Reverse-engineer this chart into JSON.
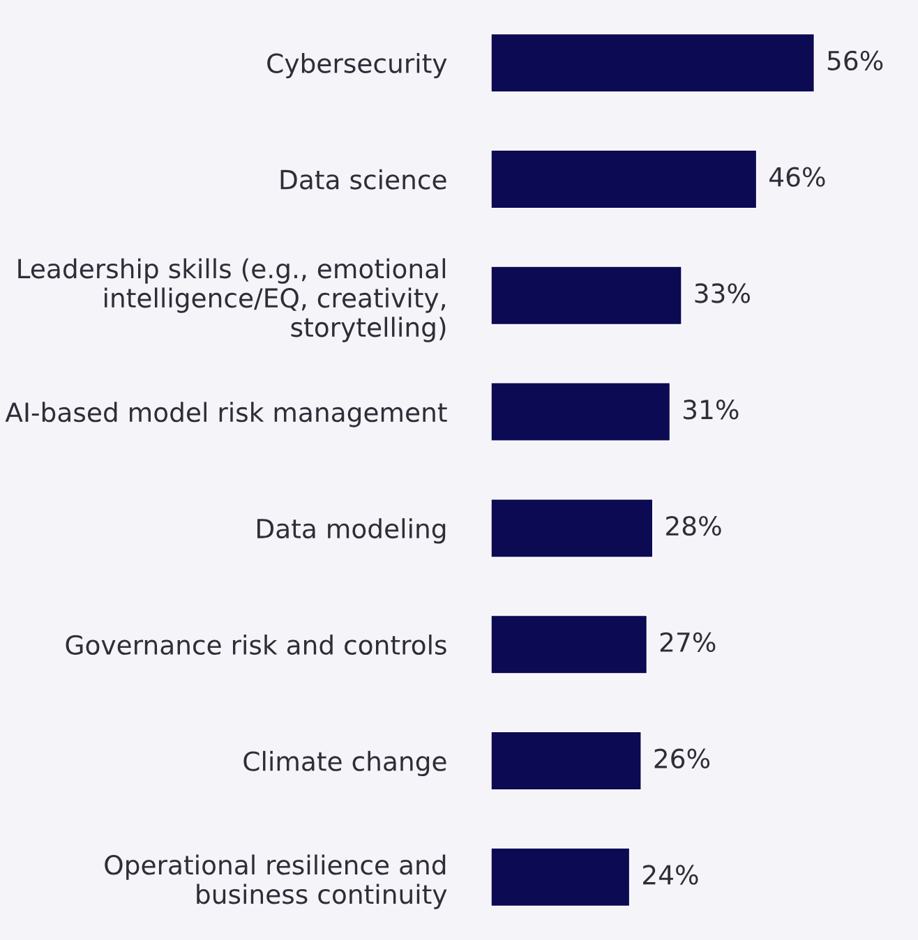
{
  "chart_data": {
    "type": "bar",
    "orientation": "horizontal",
    "categories": [
      "Cybersecurity",
      "Data science",
      "Leadership skills (e.g., emotional\nintelligence/EQ, creativity,\nstorytelling)",
      "AI-based model risk management",
      "Data modeling",
      "Governance risk and controls",
      "Climate change",
      "Operational resilience and\nbusiness continuity"
    ],
    "series": [
      {
        "color": "#0c0a52",
        "values": [
          56,
          46,
          33,
          31,
          28,
          27,
          26,
          24
        ],
        "value_labels": [
          "56%",
          "46%",
          "33%",
          "31%",
          "28%",
          "27%",
          "26%",
          "24%"
        ]
      }
    ],
    "tick_labels": "y",
    "legend": false
  }
}
